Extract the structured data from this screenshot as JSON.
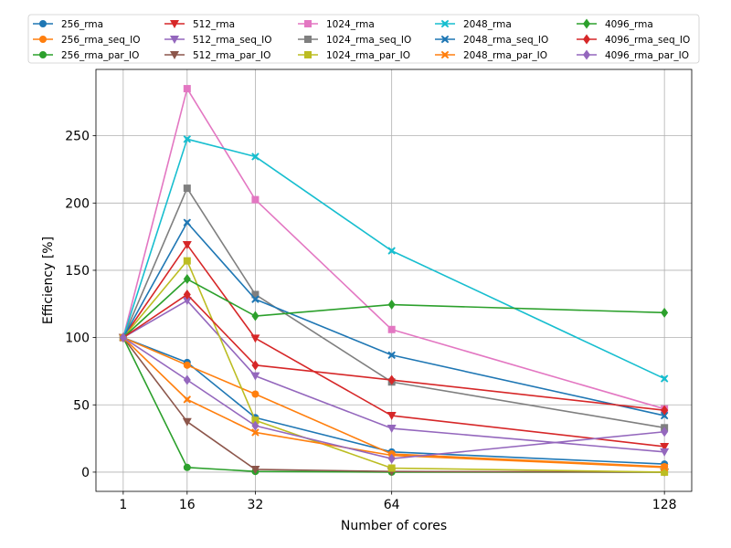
{
  "chart_data": {
    "type": "line",
    "title": "",
    "xlabel": "Number of cores",
    "ylabel": "Efficiency [%]",
    "x": [
      1,
      16,
      32,
      64,
      128
    ],
    "x_ticks": [
      1,
      16,
      32,
      64,
      128
    ],
    "y_ticks": [
      0,
      50,
      100,
      150,
      200,
      250
    ],
    "xlim": [
      -5.4,
      134.4
    ],
    "ylim": [
      -14.3,
      299.3
    ],
    "grid": true,
    "legend_position": "top",
    "series": [
      {
        "name": "256_rma",
        "color": "#1f77b4",
        "marker": "circle",
        "values": [
          100,
          81.5,
          40.5,
          15,
          6
        ]
      },
      {
        "name": "256_rma_seq_IO",
        "color": "#ff7f0e",
        "marker": "circle",
        "values": [
          100,
          79.5,
          58,
          13.5,
          4
        ]
      },
      {
        "name": "256_rma_par_IO",
        "color": "#2ca02c",
        "marker": "circle",
        "values": [
          100,
          3.5,
          0.5,
          0,
          0
        ]
      },
      {
        "name": "512_rma",
        "color": "#d62728",
        "marker": "triangle-down",
        "values": [
          100,
          169,
          99.5,
          42,
          19
        ]
      },
      {
        "name": "512_rma_seq_IO",
        "color": "#9467bd",
        "marker": "triangle-down",
        "values": [
          100,
          127.5,
          71.5,
          32.5,
          15
        ]
      },
      {
        "name": "512_rma_par_IO",
        "color": "#8c564b",
        "marker": "triangle-down",
        "values": [
          100,
          37.5,
          2,
          0.5,
          0
        ]
      },
      {
        "name": "1024_rma",
        "color": "#e377c2",
        "marker": "square",
        "values": [
          100,
          285,
          202.5,
          106,
          47
        ]
      },
      {
        "name": "1024_rma_seq_IO",
        "color": "#7f7f7f",
        "marker": "square",
        "values": [
          100,
          211,
          132,
          67,
          33
        ]
      },
      {
        "name": "1024_rma_par_IO",
        "color": "#bcbd22",
        "marker": "square",
        "values": [
          100,
          157,
          38.5,
          3,
          0
        ]
      },
      {
        "name": "2048_rma",
        "color": "#17becf",
        "marker": "x-filled",
        "values": [
          100,
          247.5,
          234.5,
          164.5,
          69.5
        ]
      },
      {
        "name": "2048_rma_seq_IO",
        "color": "#1f77b4",
        "marker": "x-filled",
        "values": [
          100,
          185.5,
          128.5,
          87,
          42
        ]
      },
      {
        "name": "2048_rma_par_IO",
        "color": "#ff7f0e",
        "marker": "x-filled",
        "values": [
          100,
          54,
          29.5,
          12.5,
          3.5
        ]
      },
      {
        "name": "4096_rma",
        "color": "#2ca02c",
        "marker": "diamond",
        "values": [
          100,
          143.5,
          116,
          124.5,
          118.5
        ]
      },
      {
        "name": "4096_rma_seq_IO",
        "color": "#d62728",
        "marker": "diamond",
        "values": [
          100,
          132,
          79.5,
          68.5,
          46
        ]
      },
      {
        "name": "4096_rma_par_IO",
        "color": "#9467bd",
        "marker": "diamond",
        "values": [
          100,
          68.5,
          34.5,
          10,
          30
        ]
      }
    ]
  }
}
